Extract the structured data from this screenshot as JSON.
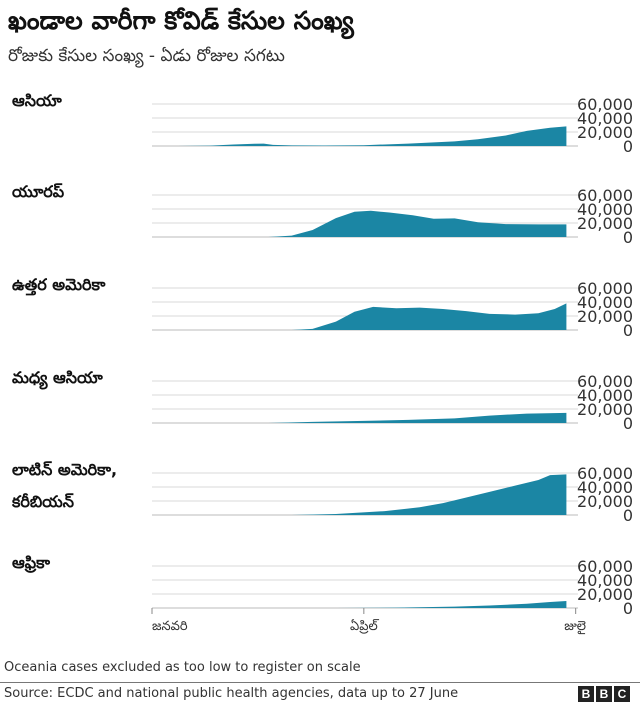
{
  "title": "ఖండాల వారీగా కోవిడ్ కేసుల సంఖ్య",
  "subtitle": "రోజుకు కేసుల సంఖ్య - ఏడు రోజుల సగటు",
  "note": "Oceania cases excluded as too low to register on scale",
  "source": "Source: ECDC and national public health agencies, data up to 27 June",
  "logo": [
    "B",
    "B",
    "C"
  ],
  "colors": {
    "area": "#1b86a4",
    "grid": "#d9d9d9",
    "baseline": "#bbbbbb"
  },
  "chart_data": [
    {
      "type": "area",
      "name": "ఆసియా",
      "x": [
        "2020-01-01",
        "2020-01-12",
        "2020-01-26",
        "2020-02-05",
        "2020-02-14",
        "2020-02-18",
        "2020-02-22",
        "2020-03-01",
        "2020-03-15",
        "2020-04-01",
        "2020-04-20",
        "2020-05-10",
        "2020-05-20",
        "2020-06-01",
        "2020-06-10",
        "2020-06-20",
        "2020-06-27"
      ],
      "values": [
        0,
        0,
        600,
        2200,
        3200,
        3500,
        1500,
        900,
        700,
        1200,
        3500,
        6500,
        9500,
        15000,
        21500,
        26000,
        28000
      ],
      "ylim": [
        0,
        60000
      ],
      "yticks": [
        "60,000",
        "40,000",
        "20,000",
        "0"
      ]
    },
    {
      "type": "area",
      "name": "యూరప్",
      "x": [
        "2020-01-01",
        "2020-02-20",
        "2020-03-01",
        "2020-03-10",
        "2020-03-20",
        "2020-03-28",
        "2020-04-04",
        "2020-04-12",
        "2020-04-22",
        "2020-05-01",
        "2020-05-10",
        "2020-05-20",
        "2020-06-01",
        "2020-06-15",
        "2020-06-27"
      ],
      "values": [
        0,
        0,
        2000,
        10000,
        27000,
        36000,
        37500,
        35000,
        31000,
        26000,
        26500,
        21000,
        18500,
        18000,
        18000
      ],
      "ylim": [
        0,
        60000
      ],
      "yticks": [
        "60,000",
        "40,000",
        "20,000",
        "0"
      ]
    },
    {
      "type": "area",
      "name": "ఉత్తర అమెరికా",
      "x": [
        "2020-01-01",
        "2020-03-01",
        "2020-03-10",
        "2020-03-20",
        "2020-03-28",
        "2020-04-05",
        "2020-04-15",
        "2020-04-25",
        "2020-05-05",
        "2020-05-15",
        "2020-05-25",
        "2020-06-05",
        "2020-06-15",
        "2020-06-22",
        "2020-06-27"
      ],
      "values": [
        0,
        0,
        1500,
        12000,
        26000,
        33000,
        31000,
        32000,
        30000,
        27000,
        23000,
        22000,
        24000,
        30000,
        38000
      ],
      "ylim": [
        0,
        60000
      ],
      "yticks": [
        "60,000",
        "40,000",
        "20,000",
        "0"
      ]
    },
    {
      "type": "area",
      "name": "మధ్య ఆసియా",
      "x": [
        "2020-01-01",
        "2020-02-20",
        "2020-03-10",
        "2020-04-01",
        "2020-04-20",
        "2020-05-10",
        "2020-05-25",
        "2020-06-10",
        "2020-06-27"
      ],
      "values": [
        0,
        0,
        1500,
        3000,
        4500,
        6500,
        10500,
        13500,
        14500
      ],
      "ylim": [
        0,
        60000
      ],
      "yticks": [
        "60,000",
        "40,000",
        "20,000",
        "0"
      ]
    },
    {
      "type": "area",
      "name": "లాటిన్ అమెరికా, కరీబియన్",
      "x": [
        "2020-01-01",
        "2020-03-01",
        "2020-03-20",
        "2020-04-10",
        "2020-04-25",
        "2020-05-05",
        "2020-05-15",
        "2020-05-25",
        "2020-06-05",
        "2020-06-15",
        "2020-06-20",
        "2020-06-27"
      ],
      "values": [
        0,
        0,
        1500,
        5500,
        11000,
        17000,
        25000,
        33000,
        42000,
        50000,
        57000,
        58000
      ],
      "ylim": [
        0,
        60000
      ],
      "yticks": [
        "60,000",
        "40,000",
        "20,000",
        "0"
      ]
    },
    {
      "type": "area",
      "name": "ఆఫ్రికా",
      "x": [
        "2020-01-01",
        "2020-03-20",
        "2020-04-15",
        "2020-05-10",
        "2020-05-25",
        "2020-06-10",
        "2020-06-20",
        "2020-06-27"
      ],
      "values": [
        0,
        0,
        600,
        2000,
        3500,
        6000,
        8500,
        10000
      ],
      "ylim": [
        0,
        60000
      ],
      "yticks": [
        "60,000",
        "40,000",
        "20,000",
        "0"
      ]
    }
  ],
  "xticks": [
    {
      "label": "జనవరి",
      "date": "2020-01-01"
    },
    {
      "label": "ఏప్రిల్",
      "date": "2020-04-01"
    },
    {
      "label": "జులై",
      "date": "2020-07-01"
    }
  ]
}
